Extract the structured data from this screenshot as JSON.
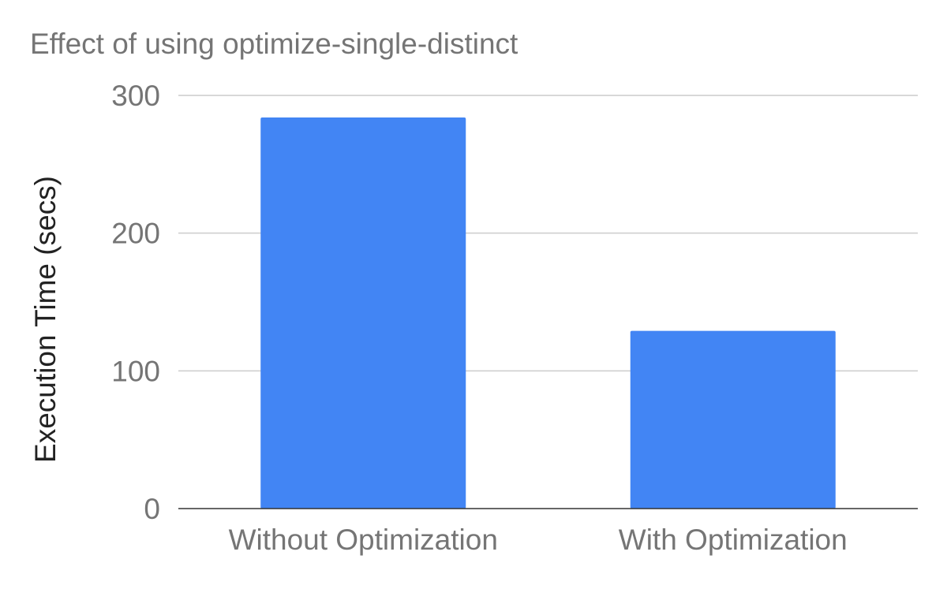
{
  "chart_data": {
    "type": "bar",
    "title": "Effect of using optimize-single-distinct",
    "xlabel": "",
    "ylabel": "Execution Time (secs)",
    "categories": [
      "Without Optimization",
      "With Optimization"
    ],
    "series": [
      {
        "values": [
          284,
          129
        ]
      }
    ],
    "ylim": [
      0,
      300
    ],
    "yticks": [
      0,
      100,
      200,
      300
    ],
    "grid": true,
    "legend": "none",
    "colors": {
      "bar": "#4285f4",
      "text": "#757575",
      "axis_title": "#222222",
      "gridline": "#cccccc",
      "baseline": "#333333"
    }
  }
}
